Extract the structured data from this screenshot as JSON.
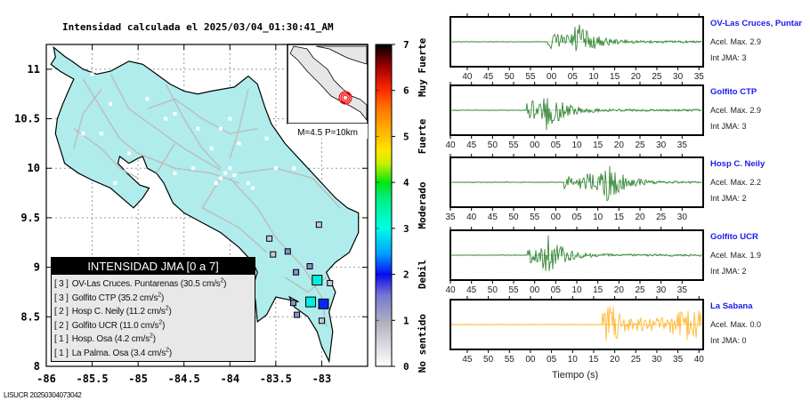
{
  "title": "Intensidad calculada el 2025/03/04_01:30:41_AM",
  "footer_id": "LISUCR 20250304073042",
  "map": {
    "lon_ticks": [
      "-86",
      "-85.5",
      "-85",
      "-84.5",
      "-84",
      "-83.5",
      "-83"
    ],
    "lat_ticks": [
      "8",
      "8.5",
      "9",
      "9.5",
      "10",
      "10.5",
      "11"
    ],
    "land_color": "#b0ecec",
    "inset_label": "M=4.5 P=10km",
    "stations": [
      {
        "lon": -83.05,
        "lat": 8.87,
        "intensity": 3
      },
      {
        "lon": -83.12,
        "lat": 8.65,
        "intensity": 3
      },
      {
        "lon": -82.98,
        "lat": 8.63,
        "intensity": 2
      },
      {
        "lon": -83.28,
        "lat": 8.95,
        "intensity": 1
      },
      {
        "lon": -83.31,
        "lat": 8.64,
        "intensity": 1
      },
      {
        "lon": -83.27,
        "lat": 8.52,
        "intensity": 1
      },
      {
        "lon": -83.13,
        "lat": 9.01,
        "intensity": 1
      },
      {
        "lon": -83.37,
        "lat": 9.16,
        "intensity": 1
      },
      {
        "lon": -83.03,
        "lat": 9.43,
        "intensity": 0
      },
      {
        "lon": -83.57,
        "lat": 9.29,
        "intensity": 0
      },
      {
        "lon": -83.53,
        "lat": 9.13,
        "intensity": 0
      },
      {
        "lon": -82.91,
        "lat": 8.84,
        "intensity": 0
      },
      {
        "lon": -83.0,
        "lat": 8.46,
        "intensity": 0
      }
    ]
  },
  "legend": {
    "header": "INTENSIDAD JMA [0 a 7]",
    "items": [
      {
        "level": "[ 3 ]",
        "text": "OV-Las Cruces. Puntarenas (30.5 cm/s",
        "sup": "2",
        "tail": ")"
      },
      {
        "level": "[ 3 ]",
        "text": "Golfito CTP (35.2 cm/s",
        "sup": "2",
        "tail": ")"
      },
      {
        "level": "[ 2 ]",
        "text": "Hosp C. Neily (11.2 cm/s",
        "sup": "2",
        "tail": ")"
      },
      {
        "level": "[ 2 ]",
        "text": "Golfito UCR (11.0 cm/s",
        "sup": "2",
        "tail": ")"
      },
      {
        "level": "[ 1 ]",
        "text": "Hosp. Osa (4.2 cm/s",
        "sup": "2",
        "tail": ")"
      },
      {
        "level": "[ 1 ]",
        "text": "La Palma. Osa (3.4 cm/s",
        "sup": "2",
        "tail": ")"
      }
    ]
  },
  "colorbar": {
    "ticks": [
      "0",
      "1",
      "2",
      "3",
      "4",
      "5",
      "6",
      "7"
    ],
    "categories": [
      "No sentido",
      "Debil",
      "Moderado",
      "Fuerte",
      "Muy Fuerte"
    ],
    "colors": [
      "#ffffff",
      "#b4b4c8",
      "#0a14f0",
      "#00ffe6",
      "#00e61e",
      "#ffd200",
      "#ff2800",
      "#000000"
    ]
  },
  "seismograms": {
    "xlabel": "Tiempo (s)",
    "trace_color_green": "#006400",
    "trace_color_orange": "#ffa500",
    "panels": [
      {
        "name": "OV-Las Cruces, Puntar",
        "acel": "Acel. Max. 2.9",
        "int": "Int JMA: 3",
        "ticks": [
          "40",
          "45",
          "50",
          "55",
          "00",
          "05",
          "10",
          "15",
          "20",
          "25",
          "30",
          "35"
        ],
        "tick_start_sec": 36,
        "onset_sec": 59,
        "peak_sec": 66,
        "color": "green"
      },
      {
        "name": "Golfito CTP",
        "acel": "Acel. Max. 2.9",
        "int": "Int JMA: 3",
        "ticks": [
          "40",
          "45",
          "50",
          "55",
          "00",
          "05",
          "10",
          "15",
          "20",
          "25",
          "30",
          "35"
        ],
        "tick_start_sec": 40,
        "onset_sec": 58,
        "peak_sec": 63,
        "color": "green"
      },
      {
        "name": "Hosp C. Neily",
        "acel": "Acel. Max. 2.2",
        "int": "Int JMA: 2",
        "ticks": [
          "35",
          "40",
          "45",
          "50",
          "55",
          "00",
          "05",
          "10",
          "15",
          "20",
          "25",
          "30"
        ],
        "tick_start_sec": 35,
        "onset_sec": 62,
        "peak_sec": 72,
        "color": "green"
      },
      {
        "name": "Golfito UCR",
        "acel": "Acel. Max. 1.9",
        "int": "Int JMA: 2",
        "ticks": [
          "40",
          "45",
          "50",
          "55",
          "00",
          "05",
          "10",
          "15",
          "20",
          "25",
          "30",
          "35"
        ],
        "tick_start_sec": 40,
        "onset_sec": 58,
        "peak_sec": 63,
        "color": "green"
      },
      {
        "name": "La Sabana",
        "acel": "Acel. Max. 0.0",
        "int": "Int JMA: 0",
        "ticks": [
          "45",
          "50",
          "55",
          "00",
          "05",
          "10",
          "15",
          "20",
          "25",
          "30",
          "35",
          "40"
        ],
        "tick_start_sec": 41,
        "onset_sec": 77,
        "peak_sec": 79,
        "color": "orange"
      }
    ]
  }
}
